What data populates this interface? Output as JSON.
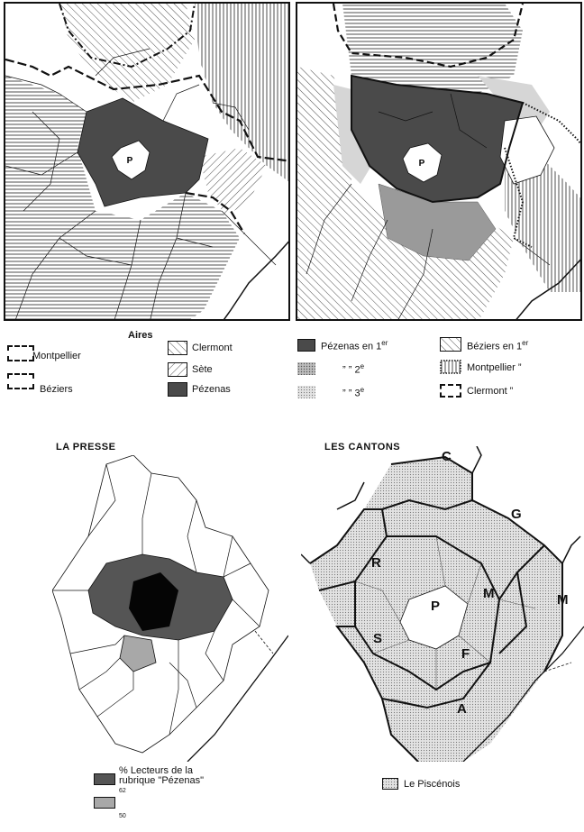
{
  "map_top_left": {
    "center_label": "P"
  },
  "map_top_right": {
    "center_label": "P"
  },
  "legend_aires": {
    "title": "Aires",
    "items": [
      {
        "label": "Montpellier",
        "pattern": "dash-bracket"
      },
      {
        "label": "Béziers",
        "pattern": "dash-bracket"
      },
      {
        "label": "Clermont",
        "pattern": "hatch-back"
      },
      {
        "label": "Sète",
        "pattern": "hatch-forward"
      },
      {
        "label": "Pézenas",
        "pattern": "dark-fill"
      }
    ]
  },
  "legend_rank": {
    "items": [
      {
        "label": "Pézenas  en  1",
        "sup": "er"
      },
      {
        "label": "”      ”  2",
        "sup": "e"
      },
      {
        "label": "”      ”  3",
        "sup": "e"
      },
      {
        "label": "Béziers  en  1",
        "sup": "er"
      },
      {
        "label": "Montpellier  ”",
        "sup": ""
      },
      {
        "label": "Clermont     ”",
        "sup": ""
      }
    ]
  },
  "map_presse": {
    "title": "LA PRESSE",
    "legend_text": "% Lecteurs de la rubrique \"Pézenas\"",
    "legend_values": [
      "62",
      "50"
    ]
  },
  "map_cantons": {
    "title": "LES CANTONS",
    "letters": [
      "C",
      "G",
      "R",
      "P",
      "M",
      "M",
      "S",
      "F",
      "A"
    ],
    "legend_text": "Le Piscénois"
  },
  "colors": {
    "dark": "#3a3a3a",
    "medium": "#9a9a9a",
    "light": "#d0d0d0",
    "ink": "#111111"
  }
}
